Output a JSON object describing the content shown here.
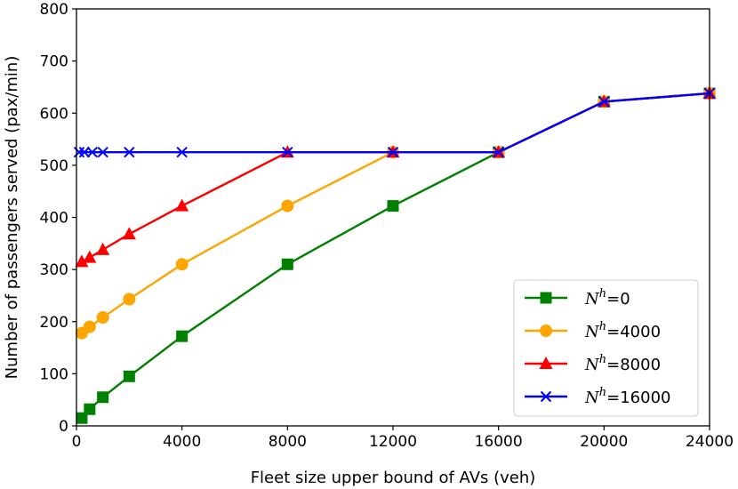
{
  "chart_data": {
    "type": "line",
    "title": "",
    "xlabel": "Fleet size upper bound of AVs (veh)",
    "ylabel": "Number of passengers served (pax/min)",
    "xlim": [
      0,
      24000
    ],
    "ylim": [
      0,
      800
    ],
    "xticks": [
      0,
      4000,
      8000,
      12000,
      16000,
      20000,
      24000
    ],
    "yticks": [
      0,
      100,
      200,
      300,
      400,
      500,
      600,
      700,
      800
    ],
    "grid": false,
    "legend_position": "lower-right",
    "series": [
      {
        "name": "N^h=0",
        "legend_var": "N",
        "legend_sup": "h",
        "legend_value": "=0",
        "color": "#008000",
        "marker": "square",
        "x": [
          200,
          500,
          1000,
          2000,
          4000,
          8000,
          12000,
          16000,
          20000,
          24000
        ],
        "y": [
          15,
          32,
          55,
          95,
          172,
          310,
          422,
          525,
          622,
          638
        ]
      },
      {
        "name": "N^h=4000",
        "legend_var": "N",
        "legend_sup": "h",
        "legend_value": "=4000",
        "color": "#FFA500",
        "marker": "circle",
        "x": [
          200,
          500,
          1000,
          2000,
          4000,
          8000,
          12000,
          16000,
          20000,
          24000
        ],
        "y": [
          178,
          190,
          208,
          243,
          310,
          422,
          525,
          525,
          622,
          638
        ]
      },
      {
        "name": "N^h=8000",
        "legend_var": "N",
        "legend_sup": "h",
        "legend_value": "=8000",
        "color": "#FF0000",
        "marker": "triangle",
        "x": [
          200,
          500,
          1000,
          2000,
          4000,
          8000,
          12000,
          16000,
          20000,
          24000
        ],
        "y": [
          315,
          323,
          338,
          368,
          422,
          525,
          525,
          525,
          622,
          638
        ]
      },
      {
        "name": "N^h=16000",
        "legend_var": "N",
        "legend_sup": "h",
        "legend_value": "=16000",
        "color": "#0000FF",
        "marker": "x",
        "x": [
          100,
          300,
          600,
          1000,
          2000,
          4000,
          8000,
          12000,
          16000,
          20000,
          24000
        ],
        "y": [
          525,
          525,
          525,
          525,
          525,
          525,
          525,
          525,
          525,
          622,
          638
        ]
      }
    ]
  }
}
